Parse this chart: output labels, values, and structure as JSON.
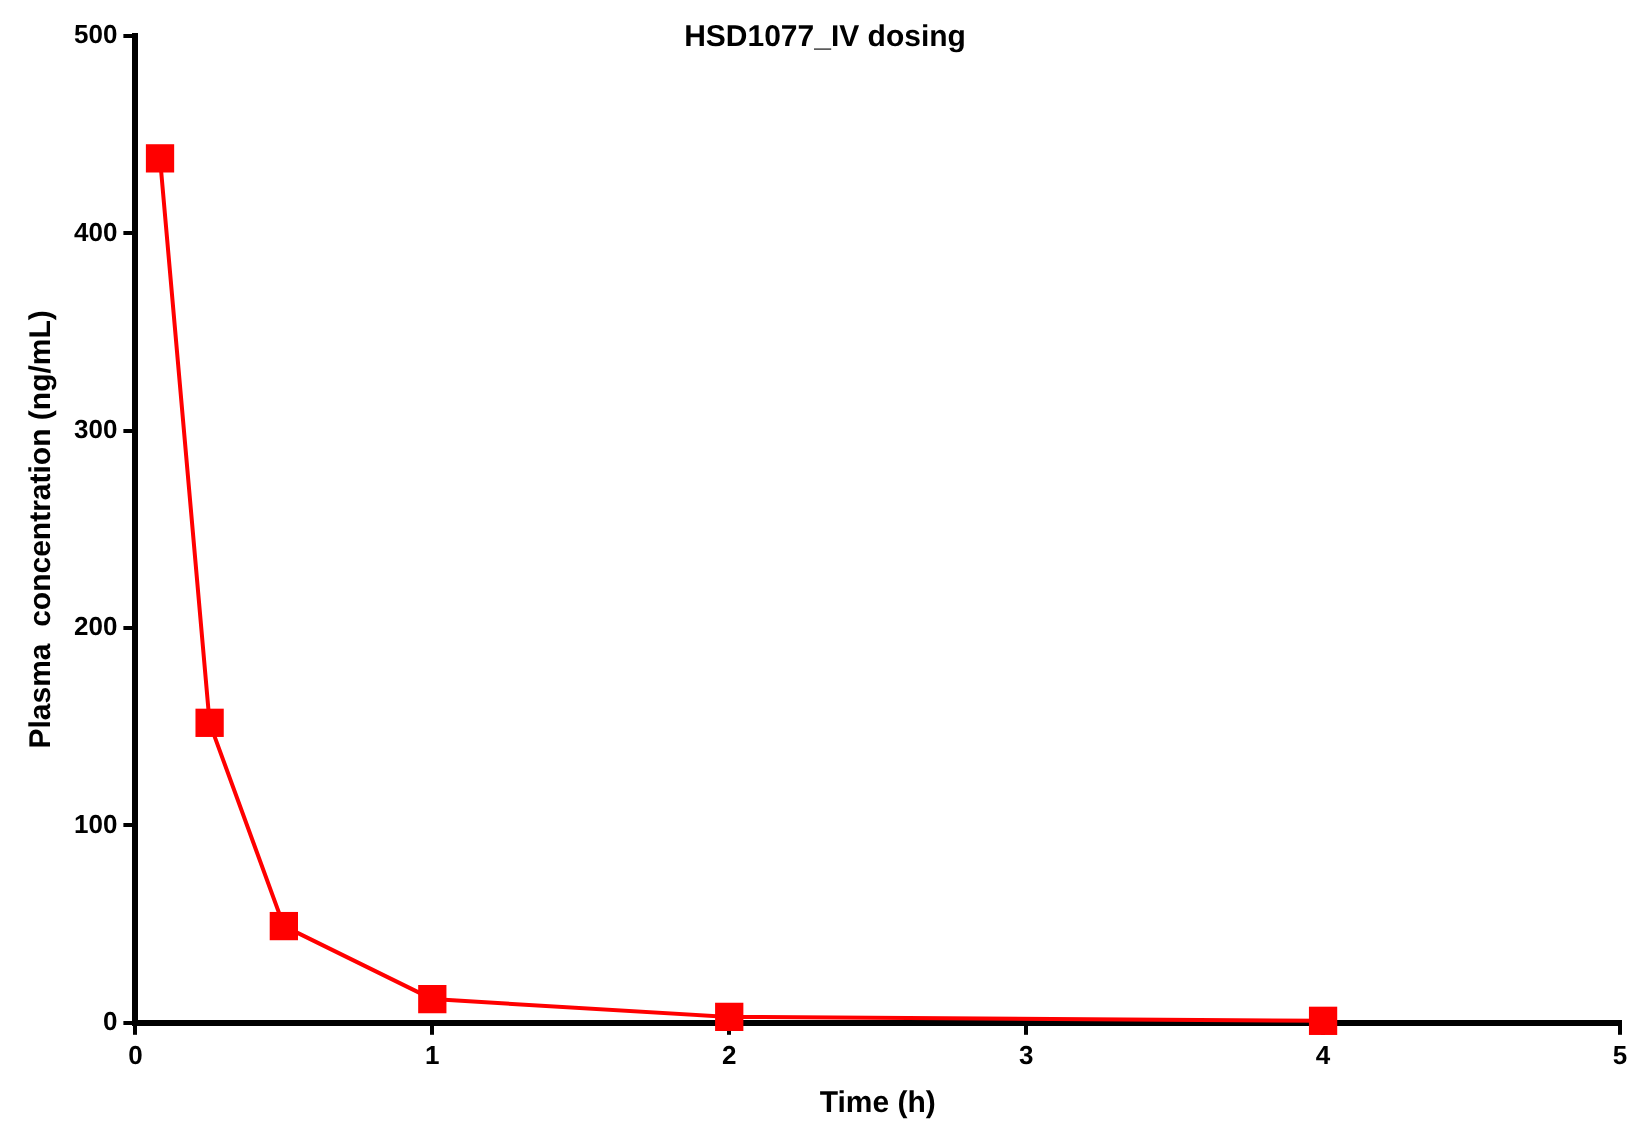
{
  "chart_data": {
    "type": "line",
    "title": "HSD1077_IV dosing",
    "xlabel": "Time (h)",
    "ylabel": "Plasma  concentration (ng/mL)",
    "x": [
      0.083,
      0.25,
      0.5,
      1,
      2,
      4
    ],
    "series": [
      {
        "color": "#ff0000",
        "values": [
          438,
          152,
          49,
          12,
          3,
          1
        ]
      }
    ],
    "xlim": [
      0,
      5
    ],
    "xticks": [
      0,
      1,
      2,
      3,
      4,
      5
    ],
    "ylim": [
      0,
      500
    ],
    "yticks": [
      0,
      100,
      200,
      300,
      400,
      500
    ],
    "grid": false,
    "legend": false,
    "marker": "square",
    "line_style": "solid"
  }
}
